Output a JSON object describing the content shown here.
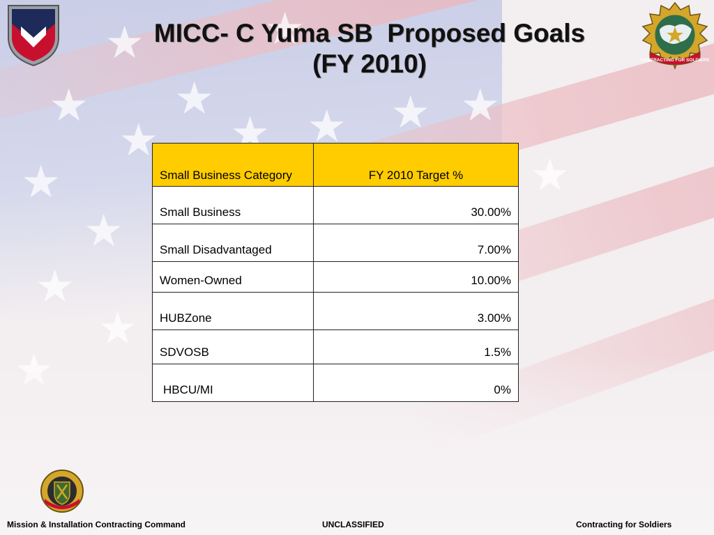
{
  "title": {
    "line1": "MICC- C Yuma SB  Proposed Goals",
    "line2": "(FY 2010)"
  },
  "table": {
    "headers": [
      "Small Business Category",
      "FY 2010 Target %"
    ],
    "rows": [
      {
        "category": "Small Business",
        "target": "30.00%"
      },
      {
        "category": "Small Disadvantaged",
        "target": "7.00%"
      },
      {
        "category": "Women-Owned",
        "target": "10.00%"
      },
      {
        "category": "HUBZone",
        "target": "3.00%"
      },
      {
        "category": "SDVOSB",
        "target": "1.5%"
      },
      {
        "category": "HBCU/MI",
        "target": "0%"
      }
    ]
  },
  "footer": {
    "left": "Mission & Installation Contracting Command",
    "center": "UNCLASSIFIED",
    "right": "Contracting for Soldiers"
  },
  "logos": {
    "left": "army-materiel-command-shield-icon",
    "right": "contracting-command-emblem-icon",
    "right_text": "CONTRACTING FOR SOLDIERS",
    "bottom": "contracting-unit-crest-icon"
  },
  "colors": {
    "header_fill": "#ffcc00",
    "shield_red": "#c8102e",
    "shield_navy": "#1e2a5a"
  }
}
